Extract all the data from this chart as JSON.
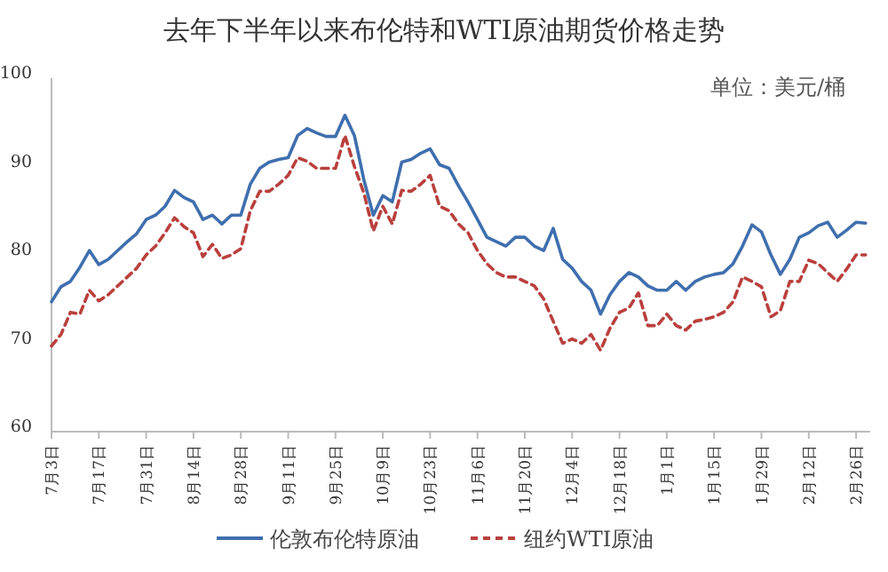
{
  "chart_data": {
    "type": "line",
    "title": "去年下半年以来布伦特和WTI原油期货价格走势",
    "annotations": [
      "单位：美元/桶"
    ],
    "categories": [
      "7月3日",
      null,
      null,
      null,
      null,
      "7月17日",
      null,
      null,
      null,
      null,
      "7月31日",
      null,
      null,
      null,
      null,
      "8月14日",
      null,
      null,
      null,
      null,
      "8月28日",
      null,
      null,
      null,
      null,
      "9月11日",
      null,
      null,
      null,
      null,
      "9月25日",
      null,
      null,
      null,
      null,
      "10月9日",
      null,
      null,
      null,
      null,
      "10月23日",
      null,
      null,
      null,
      null,
      "11月6日",
      null,
      null,
      null,
      null,
      "11月20日",
      null,
      null,
      null,
      null,
      "12月4日",
      null,
      null,
      null,
      null,
      "12月18日",
      null,
      null,
      null,
      null,
      "1月1日",
      null,
      null,
      null,
      null,
      "1月15日",
      null,
      null,
      null,
      null,
      "1月29日",
      null,
      null,
      null,
      null,
      "2月12日",
      null,
      null,
      null,
      null,
      "2月26日",
      null
    ],
    "series": [
      {
        "name": "伦敦布伦特原油",
        "color": "#3f6fae",
        "line_style": "solid",
        "values": [
          74.7,
          76.4,
          77.0,
          78.6,
          80.5,
          78.9,
          79.5,
          80.5,
          81.5,
          82.4,
          84.0,
          84.5,
          85.5,
          87.3,
          86.5,
          86.0,
          84.0,
          84.5,
          83.5,
          84.5,
          84.5,
          88.0,
          89.8,
          90.5,
          90.8,
          91.0,
          93.5,
          94.3,
          93.8,
          93.4,
          93.4,
          95.8,
          93.5,
          88.5,
          84.5,
          86.7,
          86.0,
          90.5,
          90.8,
          91.5,
          92.0,
          90.2,
          89.8,
          87.8,
          86.0,
          84.0,
          82.0,
          81.5,
          81.0,
          82.0,
          82.0,
          81.0,
          80.5,
          83.0,
          79.5,
          78.5,
          77.0,
          76.0,
          73.3,
          75.5,
          77.0,
          78.0,
          77.5,
          76.5,
          76.0,
          76.0,
          77.0,
          76.0,
          77.0,
          77.5,
          77.8,
          78.0,
          79.0,
          81.0,
          83.4,
          82.6,
          80.0,
          77.8,
          79.5,
          82.0,
          82.5,
          83.3,
          83.7,
          82.0,
          82.8,
          83.7,
          83.6
        ]
      },
      {
        "name": "纽约WTI原油",
        "color": "#b9403d",
        "line_style": "dashed",
        "values": [
          69.7,
          71.0,
          73.5,
          73.3,
          76.0,
          74.8,
          75.5,
          76.5,
          77.5,
          78.5,
          80.0,
          81.0,
          82.5,
          84.2,
          83.2,
          82.5,
          79.8,
          81.2,
          79.6,
          80.0,
          80.7,
          85.0,
          87.2,
          87.2,
          88.0,
          89.0,
          91.0,
          90.6,
          89.8,
          89.8,
          89.8,
          93.5,
          90.0,
          87.0,
          82.7,
          85.5,
          83.5,
          87.3,
          87.2,
          88.0,
          89.0,
          85.5,
          85.0,
          83.5,
          82.5,
          80.5,
          79.0,
          78.0,
          77.5,
          77.5,
          77.0,
          76.5,
          75.0,
          72.5,
          70.0,
          70.5,
          70.0,
          71.0,
          69.2,
          71.7,
          73.5,
          74.0,
          75.7,
          72.0,
          72.0,
          73.3,
          72.0,
          71.5,
          72.5,
          72.7,
          73.0,
          73.5,
          74.7,
          77.5,
          77.0,
          76.4,
          73.0,
          73.7,
          77.0,
          77.0,
          79.4,
          79.0,
          78.0,
          77.0,
          78.4,
          80.0,
          80.0
        ]
      }
    ],
    "ylim": [
      60,
      100
    ],
    "yticks": [
      60,
      70,
      80,
      90,
      100
    ],
    "grid": false,
    "legend": "bottom",
    "marker": "none"
  }
}
